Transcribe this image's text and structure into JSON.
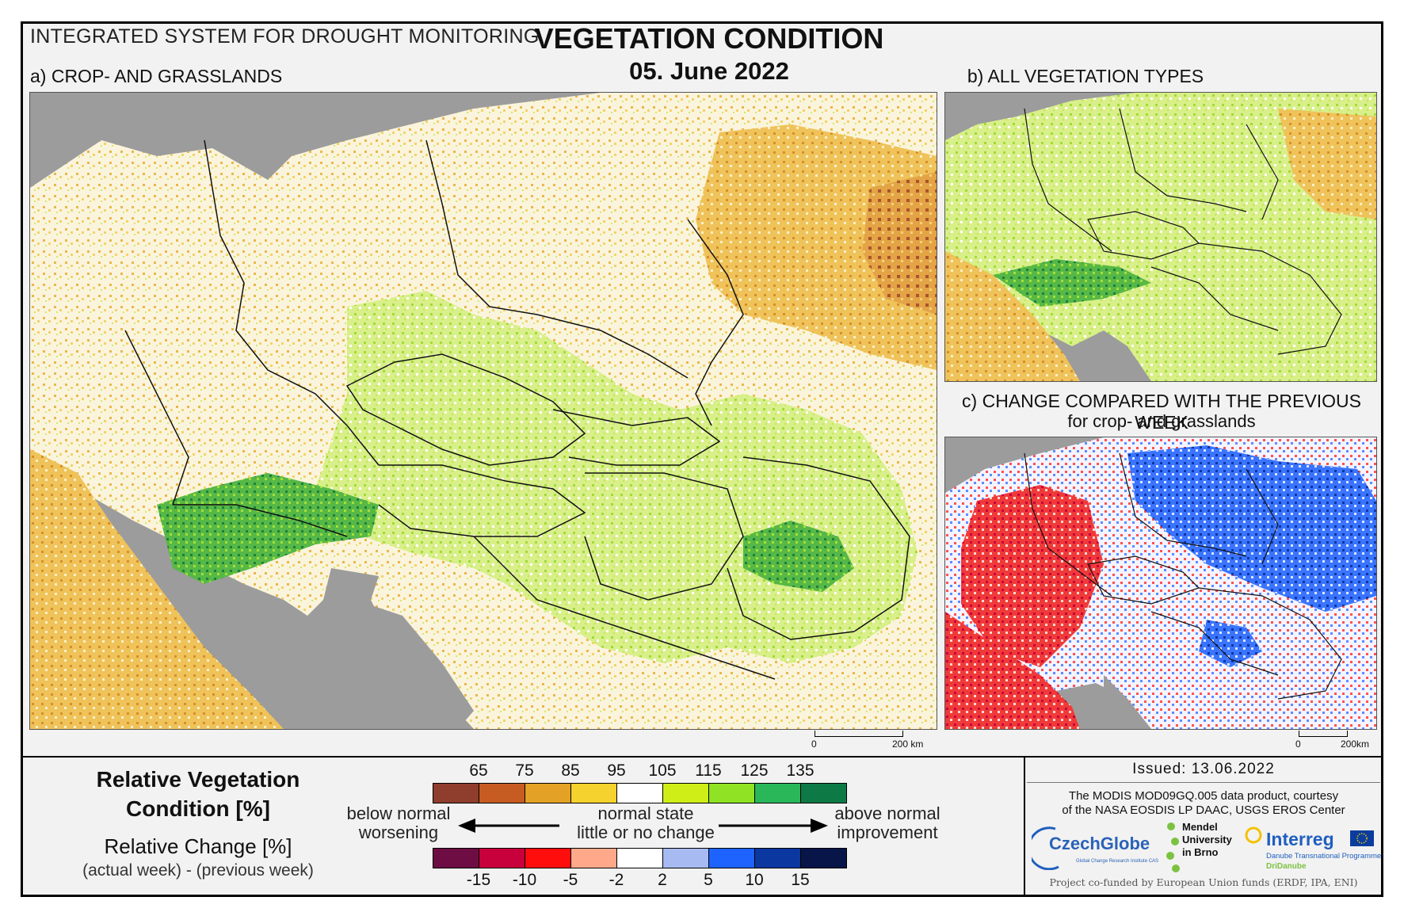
{
  "header": {
    "system_title": "INTEGRATED SYSTEM FOR DROUGHT MONITORING",
    "main_title": "VEGETATION CONDITION",
    "date": "05. June 2022"
  },
  "panels": {
    "a": {
      "label": "a) CROP- AND GRASSLANDS",
      "scale": {
        "zero": "0",
        "max": "200 km"
      }
    },
    "b": {
      "label": "b) ALL VEGETATION TYPES"
    },
    "c": {
      "label": "c) CHANGE COMPARED WITH THE PREVIOUS WEEK",
      "sublabel": "for crop- and grasslands",
      "scale": {
        "zero": "0",
        "max": "200km"
      }
    }
  },
  "legend": {
    "condition_title_line1": "Relative Vegetation",
    "condition_title_line2": "Condition [%]",
    "change_title": "Relative Change [%]",
    "change_subtitle": "(actual week) - (previous week)",
    "condition_ticks": [
      "65",
      "75",
      "85",
      "95",
      "105",
      "115",
      "125",
      "135"
    ],
    "condition_colors": [
      "#8f3d2c",
      "#c75c23",
      "#e3a225",
      "#f5d22d",
      "#ffffff",
      "#cfee17",
      "#8fe324",
      "#29b75a",
      "#0d7a45"
    ],
    "change_ticks": [
      "-15",
      "-10",
      "-5",
      "-2",
      "2",
      "5",
      "10",
      "15"
    ],
    "change_colors": [
      "#6d0d43",
      "#c8003c",
      "#ff0d0d",
      "#ffa98a",
      "#ffffff",
      "#a7bbf2",
      "#1f63ff",
      "#0b37a1",
      "#071548"
    ],
    "left_text_line1": "below normal",
    "left_text_line2": "worsening",
    "center_text_line1": "normal state",
    "center_text_line2": "little or no change",
    "right_text_line1": "above normal",
    "right_text_line2": "improvement"
  },
  "footer": {
    "issued": "Issued: 13.06.2022",
    "credit_line1": "The MODIS MOD09GQ.005 data product, courtesy",
    "credit_line2": "of the NASA EOSDIS LP DAAC, USGS EROS Center",
    "funded": "Project co-funded by European Union funds (ERDF, IPA, ENI)",
    "logos": {
      "czechglobe": "CzechGlobe",
      "czechglobe_sub": "Global Change Research Institute CAS",
      "mendel_line1": "Mendel",
      "mendel_line2": "University",
      "mendel_line3": "in Brno",
      "interreg": "Interreg",
      "interreg_line1": "Danube Transnational Programme",
      "interreg_line2": "DriDanube"
    }
  }
}
